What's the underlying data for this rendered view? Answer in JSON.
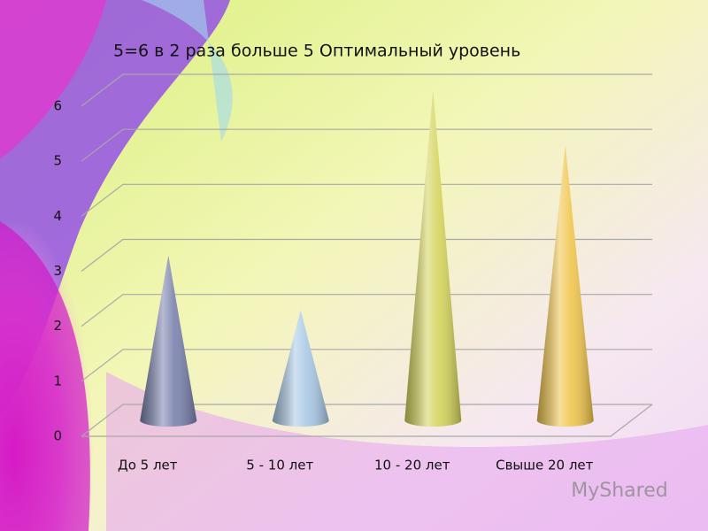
{
  "chart_data": {
    "type": "cone",
    "title": "5=6 в 2 раза больше 5 Оптимальный уровень",
    "categories": [
      "До 5 лет",
      "5 - 10 лет",
      "10 - 20 лет",
      "Свыше 20 лет"
    ],
    "values": [
      3,
      2,
      6,
      5
    ],
    "colors": [
      "#7a82ad",
      "#a9c9e6",
      "#d4d45c",
      "#f0c64e"
    ],
    "ylim": [
      0,
      6
    ],
    "yticks": [
      0,
      1,
      2,
      3,
      4,
      5,
      6
    ],
    "grid": true
  },
  "watermark": "MyShared"
}
